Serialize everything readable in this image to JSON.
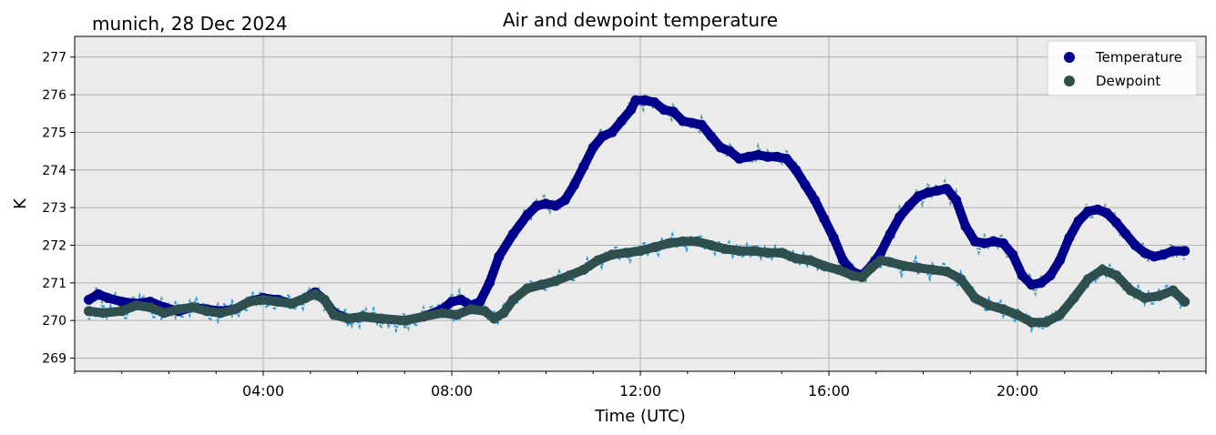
{
  "location_label": "munich, 28 Dec 2024",
  "chart_data": {
    "type": "line",
    "title": "Air and dewpoint temperature",
    "xlabel": "Time (UTC)",
    "ylabel": "K",
    "x_unit": "hours",
    "xlim": [
      0,
      24
    ],
    "ylim": [
      268.65,
      277.55
    ],
    "x_ticks": [
      4,
      8,
      12,
      16,
      20
    ],
    "x_tick_labels": [
      "04:00",
      "08:00",
      "12:00",
      "16:00",
      "20:00"
    ],
    "y_ticks": [
      269,
      270,
      271,
      272,
      273,
      274,
      275,
      276,
      277
    ],
    "y_tick_labels": [
      "269",
      "270",
      "271",
      "272",
      "273",
      "274",
      "275",
      "276",
      "277"
    ],
    "grid": true,
    "legend": "top-right",
    "background_color": "#ebebeb",
    "series": [
      {
        "name": "Temperature",
        "color": "#00008b",
        "raw_color": "#5f9ea0",
        "x": [
          0.3,
          0.5,
          0.7,
          1.0,
          1.3,
          1.6,
          1.9,
          2.2,
          2.5,
          2.8,
          3.1,
          3.4,
          3.7,
          4.0,
          4.3,
          4.6,
          4.9,
          5.1,
          5.3,
          5.5,
          5.8,
          6.1,
          6.5,
          7.0,
          7.4,
          7.8,
          8.0,
          8.2,
          8.4,
          8.6,
          8.8,
          9.0,
          9.3,
          9.6,
          9.8,
          10.0,
          10.2,
          10.4,
          10.6,
          10.8,
          11.0,
          11.2,
          11.4,
          11.6,
          11.8,
          11.9,
          12.1,
          12.3,
          12.5,
          12.7,
          12.9,
          13.1,
          13.3,
          13.5,
          13.7,
          13.9,
          14.1,
          14.3,
          14.5,
          14.7,
          14.9,
          15.1,
          15.3,
          15.5,
          15.7,
          15.9,
          16.1,
          16.3,
          16.5,
          16.7,
          16.9,
          17.1,
          17.3,
          17.5,
          17.7,
          17.9,
          18.1,
          18.3,
          18.5,
          18.7,
          18.9,
          19.1,
          19.3,
          19.5,
          19.7,
          19.9,
          20.1,
          20.3,
          20.5,
          20.7,
          20.9,
          21.1,
          21.3,
          21.5,
          21.7,
          21.9,
          22.1,
          22.3,
          22.5,
          22.7,
          22.9,
          23.1,
          23.3,
          23.55
        ],
        "values": [
          270.55,
          270.7,
          270.6,
          270.5,
          270.45,
          270.5,
          270.35,
          270.25,
          270.35,
          270.3,
          270.25,
          270.3,
          270.5,
          270.6,
          270.55,
          270.45,
          270.6,
          270.75,
          270.55,
          270.2,
          270.05,
          270.1,
          270.05,
          270.0,
          270.1,
          270.3,
          270.5,
          270.55,
          270.4,
          270.5,
          271.0,
          271.7,
          272.3,
          272.8,
          273.05,
          273.1,
          273.05,
          273.2,
          273.6,
          274.1,
          274.6,
          274.9,
          275.0,
          275.3,
          275.6,
          275.85,
          275.85,
          275.8,
          275.6,
          275.55,
          275.3,
          275.25,
          275.2,
          274.9,
          274.6,
          274.5,
          274.3,
          274.35,
          274.4,
          274.35,
          274.35,
          274.3,
          274.0,
          273.6,
          273.2,
          272.7,
          272.2,
          271.6,
          271.3,
          271.2,
          271.45,
          271.8,
          272.3,
          272.75,
          273.05,
          273.3,
          273.4,
          273.45,
          273.5,
          273.2,
          272.5,
          272.1,
          272.05,
          272.1,
          272.05,
          271.75,
          271.2,
          270.95,
          271.0,
          271.2,
          271.6,
          272.2,
          272.65,
          272.9,
          272.95,
          272.85,
          272.6,
          272.3,
          272.0,
          271.8,
          271.7,
          271.75,
          271.85,
          271.85
        ]
      },
      {
        "name": "Dewpoint",
        "color": "#2f4f4f",
        "raw_color": "#1e9be8",
        "x": [
          0.3,
          0.6,
          1.0,
          1.3,
          1.6,
          1.9,
          2.2,
          2.5,
          2.8,
          3.1,
          3.4,
          3.7,
          4.0,
          4.3,
          4.6,
          4.9,
          5.1,
          5.3,
          5.5,
          5.8,
          6.1,
          6.5,
          7.0,
          7.4,
          7.8,
          8.1,
          8.4,
          8.7,
          8.9,
          9.1,
          9.3,
          9.6,
          9.9,
          10.2,
          10.5,
          10.8,
          11.1,
          11.4,
          11.7,
          12.0,
          12.3,
          12.6,
          12.9,
          13.2,
          13.5,
          13.8,
          14.1,
          14.4,
          14.7,
          15.0,
          15.3,
          15.6,
          15.9,
          16.2,
          16.5,
          16.7,
          16.9,
          17.1,
          17.3,
          17.6,
          17.9,
          18.2,
          18.5,
          18.8,
          19.1,
          19.4,
          19.7,
          20.0,
          20.3,
          20.6,
          20.9,
          21.2,
          21.5,
          21.8,
          22.1,
          22.4,
          22.7,
          23.0,
          23.3,
          23.55
        ],
        "values": [
          270.25,
          270.2,
          270.25,
          270.4,
          270.35,
          270.2,
          270.3,
          270.35,
          270.25,
          270.2,
          270.3,
          270.5,
          270.55,
          270.5,
          270.45,
          270.6,
          270.7,
          270.55,
          270.15,
          270.05,
          270.1,
          270.05,
          270.0,
          270.1,
          270.2,
          270.15,
          270.3,
          270.25,
          270.05,
          270.2,
          270.55,
          270.85,
          270.95,
          271.05,
          271.2,
          271.35,
          271.6,
          271.75,
          271.8,
          271.85,
          271.95,
          272.05,
          272.1,
          272.1,
          272.0,
          271.9,
          271.85,
          271.85,
          271.8,
          271.8,
          271.65,
          271.6,
          271.45,
          271.35,
          271.2,
          271.15,
          271.4,
          271.6,
          271.55,
          271.45,
          271.4,
          271.35,
          271.3,
          271.1,
          270.6,
          270.4,
          270.3,
          270.15,
          269.95,
          269.95,
          270.15,
          270.6,
          271.1,
          271.35,
          271.2,
          270.8,
          270.6,
          270.65,
          270.8,
          270.5
        ]
      }
    ]
  }
}
